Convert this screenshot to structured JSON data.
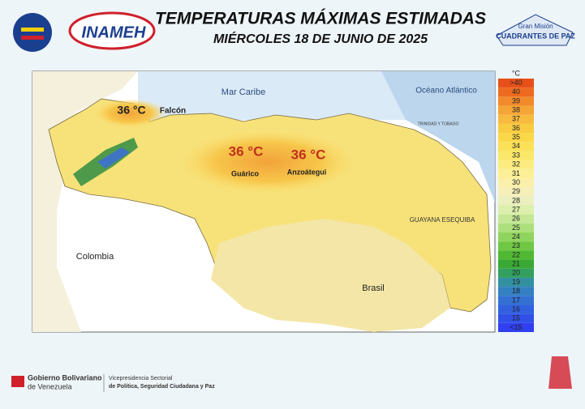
{
  "header": {
    "title": "TEMPERATURAS MÁXIMAS ESTIMADAS",
    "subtitle": "MIÉRCOLES 18 DE JUNIO DE 2025",
    "logo_left": "INAMEH",
    "logo_right_top": "Gran Misión",
    "logo_right_bottom": "CUADRANTES DE PAZ"
  },
  "map": {
    "labels": {
      "sea": "Mar Caribe",
      "ocean": "Océano Atlántico",
      "colombia": "Colombia",
      "brasil": "Brasil",
      "esequiba": "GUAYANA ESEQUIBA",
      "trinidad": "TRINIDAD Y TOBAGO"
    },
    "annotations": [
      {
        "temp": "36 °C",
        "state": "Falcón"
      },
      {
        "temp": "36 °C",
        "state": "Guárico"
      },
      {
        "temp": "36 °C",
        "state": "Anzoátegui"
      }
    ]
  },
  "legend": {
    "unit": "°C",
    "labels": [
      ">40",
      40,
      39,
      38,
      37,
      36,
      35,
      34,
      33,
      32,
      31,
      30,
      29,
      28,
      27,
      26,
      25,
      24,
      23,
      22,
      21,
      20,
      19,
      18,
      17,
      16,
      15,
      "<15"
    ],
    "colors": [
      "#e8501a",
      "#ee6a20",
      "#f28a2c",
      "#f5a436",
      "#f7ba3e",
      "#f9cc42",
      "#fad84a",
      "#fbe158",
      "#fbe86a",
      "#fcec80",
      "#fcef96",
      "#fbf0aa",
      "#f6efb8",
      "#ecefbe",
      "#dcefac",
      "#c6e796",
      "#ade07c",
      "#8fd45e",
      "#6fc744",
      "#52b834",
      "#3aa834",
      "#33a060",
      "#3390a0",
      "#3380c2",
      "#3370d2",
      "#3160e0",
      "#3050e8",
      "#3040f0"
    ]
  },
  "footer": {
    "gov_line1": "Gobierno Bolivariano",
    "gov_line2": "de Venezuela",
    "vice_line1": "Vicepresidencia Sectorial",
    "vice_line2": "de Política, Seguridad Ciudadana y Paz"
  }
}
